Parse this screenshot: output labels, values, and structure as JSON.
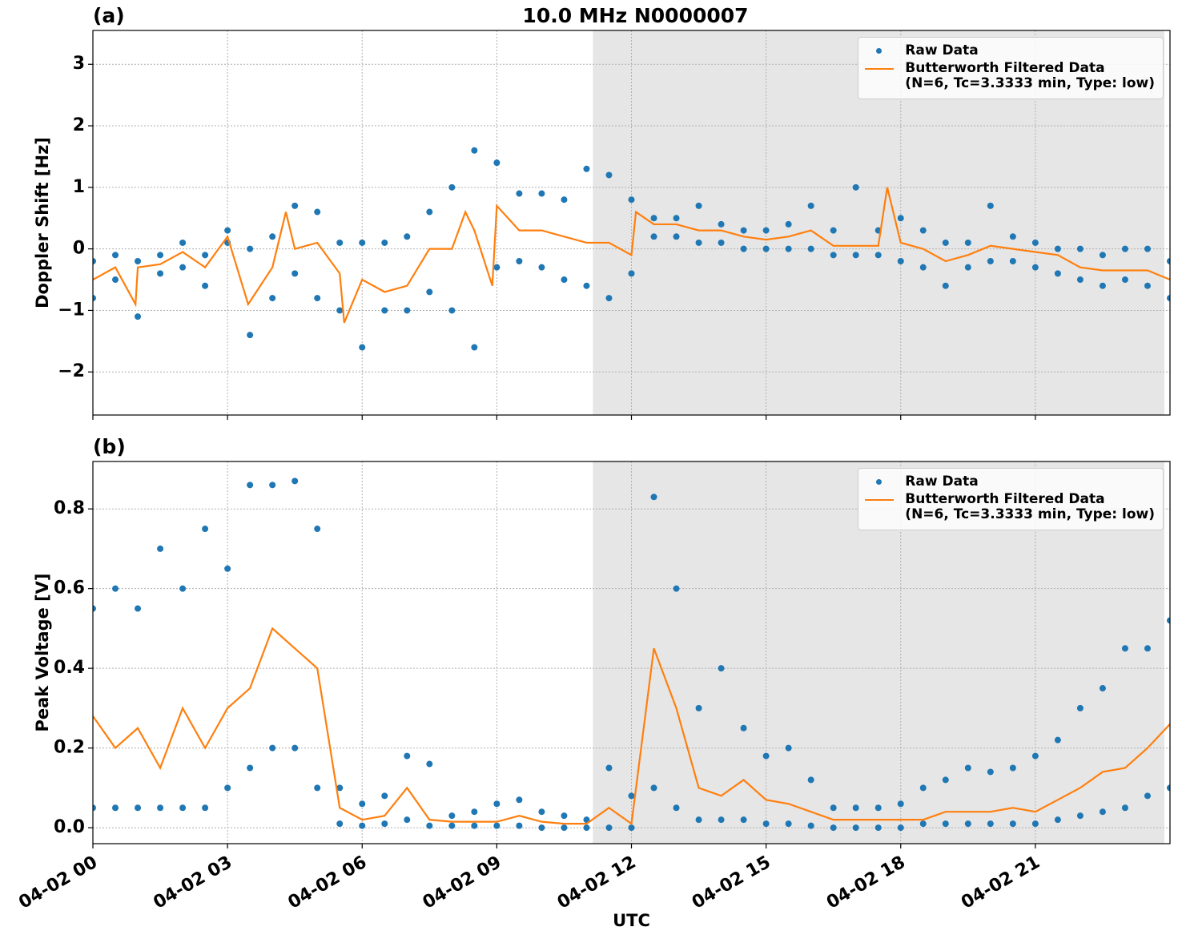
{
  "chart_data": [
    {
      "type": "scatter",
      "title": "10.0 MHz N0000007",
      "panel_label": "(a)",
      "ylabel": "Doppler Shift [Hz]",
      "xlim": [
        0,
        24
      ],
      "xticks": [
        0,
        3,
        6,
        9,
        12,
        15,
        18,
        21
      ],
      "ylim": [
        -2.7,
        3.55
      ],
      "yticks": [
        {
          "value": -2,
          "label": "−2"
        },
        {
          "value": -1,
          "label": "−1"
        },
        0,
        1,
        2,
        3
      ],
      "grid": true,
      "legend": "upper right",
      "shade": [
        11.14,
        23.875
      ],
      "series": [
        {
          "name": "Raw Data",
          "color": "#1f77b4",
          "x": [
            0,
            0,
            0.5,
            0.5,
            1,
            1,
            1.5,
            1.5,
            2,
            2,
            2.5,
            2.5,
            3,
            3,
            3.5,
            3.5,
            4,
            4,
            4.5,
            4.5,
            5,
            5,
            5.5,
            5.5,
            6,
            6,
            6.5,
            6.5,
            7,
            7,
            7.5,
            7.5,
            8,
            8,
            8.5,
            8.5,
            9,
            9,
            9.5,
            9.5,
            10,
            10,
            10.5,
            10.5,
            11,
            11,
            11.5,
            11.5,
            12,
            12,
            12.5,
            12.5,
            13,
            13,
            13.5,
            13.5,
            14,
            14,
            14.5,
            14.5,
            15,
            15,
            15.5,
            15.5,
            16,
            16,
            16.5,
            16.5,
            17,
            17,
            17.5,
            17.5,
            18,
            18,
            18.5,
            18.5,
            19,
            19,
            19.5,
            19.5,
            20,
            20,
            20.5,
            20.5,
            21,
            21,
            21.5,
            21.5,
            22,
            22,
            22.5,
            22.5,
            23,
            23,
            23.5,
            23.5,
            24,
            24
          ],
          "values": [
            -0.2,
            -0.8,
            -0.1,
            -0.5,
            -0.2,
            -1.1,
            -0.1,
            -0.4,
            0.1,
            -0.3,
            -0.1,
            -0.6,
            0.3,
            0.1,
            0.0,
            -1.4,
            0.2,
            -0.8,
            0.7,
            -0.4,
            0.6,
            -0.8,
            0.1,
            -1.0,
            0.1,
            -1.6,
            0.1,
            -1.0,
            0.2,
            -1.0,
            0.6,
            -0.7,
            1.0,
            -1.0,
            1.6,
            -1.6,
            1.4,
            -0.3,
            0.9,
            -0.2,
            0.9,
            -0.3,
            0.8,
            -0.5,
            1.3,
            -0.6,
            1.2,
            -0.8,
            0.8,
            -0.4,
            0.5,
            0.2,
            0.5,
            0.2,
            0.7,
            0.1,
            0.4,
            0.1,
            0.3,
            0.0,
            0.3,
            0.0,
            0.4,
            0.0,
            0.7,
            0.0,
            0.3,
            -0.1,
            1.0,
            -0.1,
            0.3,
            -0.1,
            0.5,
            -0.2,
            0.3,
            -0.3,
            0.1,
            -0.6,
            0.1,
            -0.3,
            0.7,
            -0.2,
            0.2,
            -0.2,
            0.1,
            -0.3,
            0.0,
            -0.4,
            0.0,
            -0.5,
            -0.1,
            -0.6,
            0.0,
            -0.5,
            0.0,
            -0.6,
            -0.2,
            -0.8
          ]
        },
        {
          "name": "Butterworth Filtered Data\n(N=6, Tc=3.3333 min, Type: low)",
          "color": "#ff7f0e",
          "line": true,
          "x": [
            0,
            0.5,
            0.95,
            1,
            1.5,
            2,
            2.5,
            3,
            3.46,
            4,
            4.3,
            4.5,
            5,
            5.5,
            5.6,
            6,
            6.5,
            7,
            7.5,
            8,
            8.3,
            8.5,
            8.9,
            9,
            9.5,
            10,
            10.5,
            11,
            11.5,
            12,
            12.1,
            12.5,
            13,
            13.5,
            14,
            14.5,
            15,
            15.5,
            16,
            16.5,
            17,
            17.5,
            17.7,
            18,
            18.5,
            19,
            19.5,
            20,
            20.5,
            21,
            21.5,
            22,
            22.5,
            23,
            23.5,
            24
          ],
          "values": [
            -0.5,
            -0.3,
            -0.9,
            -0.3,
            -0.25,
            -0.05,
            -0.3,
            0.2,
            -0.9,
            -0.3,
            0.6,
            0.0,
            0.1,
            -0.4,
            -1.2,
            -0.5,
            -0.7,
            -0.6,
            0.0,
            0.0,
            0.6,
            0.3,
            -0.6,
            0.7,
            0.3,
            0.3,
            0.2,
            0.1,
            0.1,
            -0.1,
            0.6,
            0.4,
            0.4,
            0.3,
            0.3,
            0.2,
            0.15,
            0.2,
            0.3,
            0.05,
            0.05,
            0.05,
            1.0,
            0.1,
            0.0,
            -0.2,
            -0.1,
            0.05,
            0.0,
            -0.05,
            -0.1,
            -0.3,
            -0.35,
            -0.35,
            -0.35,
            -0.5
          ]
        }
      ]
    },
    {
      "type": "scatter",
      "panel_label": "(b)",
      "ylabel": "Peak Voltage [V]",
      "xlabel": "UTC",
      "xlim": [
        0,
        24
      ],
      "xticks": [
        {
          "value": 0,
          "label": "04-02 00"
        },
        {
          "value": 3,
          "label": "04-02 03"
        },
        {
          "value": 6,
          "label": "04-02 06"
        },
        {
          "value": 9,
          "label": "04-02 09"
        },
        {
          "value": 12,
          "label": "04-02 12"
        },
        {
          "value": 15,
          "label": "04-02 15"
        },
        {
          "value": 18,
          "label": "04-02 18"
        },
        {
          "value": 21,
          "label": "04-02 21"
        }
      ],
      "ylim": [
        -0.04,
        0.919
      ],
      "yticks": [
        {
          "value": 0,
          "label": "0.0"
        },
        0.2,
        0.4,
        0.6,
        0.8
      ],
      "grid": true,
      "legend": "upper right",
      "shade": [
        11.14,
        23.875
      ],
      "series": [
        {
          "name": "Raw Data",
          "color": "#1f77b4",
          "x": [
            0,
            0,
            0.5,
            0.5,
            1,
            1,
            1.5,
            1.5,
            2,
            2,
            2.5,
            2.5,
            3,
            3,
            3.5,
            3.5,
            4,
            4,
            4.5,
            4.5,
            5,
            5,
            5.5,
            5.5,
            6,
            6,
            6.5,
            6.5,
            7,
            7,
            7.5,
            7.5,
            8,
            8,
            8.5,
            8.5,
            9,
            9,
            9.5,
            9.5,
            10,
            10,
            10.5,
            10.5,
            11,
            11,
            11.5,
            11.5,
            12,
            12,
            12.5,
            12.5,
            13,
            13,
            13.5,
            13.5,
            14,
            14,
            14.5,
            14.5,
            15,
            15,
            15.5,
            15.5,
            16,
            16,
            16.5,
            16.5,
            17,
            17,
            17.5,
            17.5,
            18,
            18,
            18.5,
            18.5,
            19,
            19,
            19.5,
            19.5,
            20,
            20,
            20.5,
            20.5,
            21,
            21,
            21.5,
            21.5,
            22,
            22,
            22.5,
            22.5,
            23,
            23,
            23.5,
            23.5,
            24,
            24
          ],
          "values": [
            0.55,
            0.05,
            0.6,
            0.05,
            0.55,
            0.05,
            0.7,
            0.05,
            0.6,
            0.05,
            0.75,
            0.05,
            0.65,
            0.1,
            0.86,
            0.15,
            0.86,
            0.2,
            0.87,
            0.2,
            0.75,
            0.1,
            0.1,
            0.01,
            0.06,
            0.005,
            0.08,
            0.01,
            0.18,
            0.02,
            0.16,
            0.005,
            0.03,
            0.005,
            0.04,
            0.005,
            0.06,
            0.005,
            0.07,
            0.005,
            0.04,
            0.0,
            0.03,
            0.0,
            0.02,
            0.0,
            0.15,
            0.0,
            0.08,
            0.0,
            0.83,
            0.1,
            0.6,
            0.05,
            0.3,
            0.02,
            0.4,
            0.02,
            0.25,
            0.02,
            0.18,
            0.01,
            0.2,
            0.01,
            0.12,
            0.005,
            0.05,
            0.0,
            0.05,
            0.0,
            0.05,
            0.0,
            0.06,
            0.0,
            0.1,
            0.01,
            0.12,
            0.01,
            0.15,
            0.01,
            0.14,
            0.01,
            0.15,
            0.01,
            0.18,
            0.01,
            0.22,
            0.02,
            0.3,
            0.03,
            0.35,
            0.04,
            0.45,
            0.05,
            0.45,
            0.08,
            0.52,
            0.1
          ]
        },
        {
          "name": "Butterworth Filtered Data\n(N=6, Tc=3.3333 min, Type: low)",
          "color": "#ff7f0e",
          "line": true,
          "x": [
            0,
            0.5,
            1,
            1.5,
            2,
            2.5,
            3,
            3.5,
            4,
            4.5,
            5,
            5.5,
            6,
            6.5,
            7,
            7.5,
            8,
            8.5,
            9,
            9.5,
            10,
            10.5,
            11,
            11.5,
            12,
            12.5,
            13,
            13.5,
            14,
            14.5,
            15,
            15.5,
            16,
            16.5,
            17,
            17.5,
            18,
            18.5,
            19,
            19.5,
            20,
            20.5,
            21,
            21.5,
            22,
            22.5,
            23,
            23.5,
            24
          ],
          "values": [
            0.28,
            0.2,
            0.25,
            0.15,
            0.3,
            0.2,
            0.3,
            0.35,
            0.5,
            0.45,
            0.4,
            0.05,
            0.02,
            0.03,
            0.1,
            0.02,
            0.015,
            0.015,
            0.015,
            0.03,
            0.015,
            0.01,
            0.01,
            0.05,
            0.01,
            0.45,
            0.3,
            0.1,
            0.08,
            0.12,
            0.07,
            0.06,
            0.04,
            0.02,
            0.02,
            0.02,
            0.02,
            0.02,
            0.04,
            0.04,
            0.04,
            0.05,
            0.04,
            0.07,
            0.1,
            0.14,
            0.15,
            0.2,
            0.26
          ]
        }
      ]
    }
  ]
}
